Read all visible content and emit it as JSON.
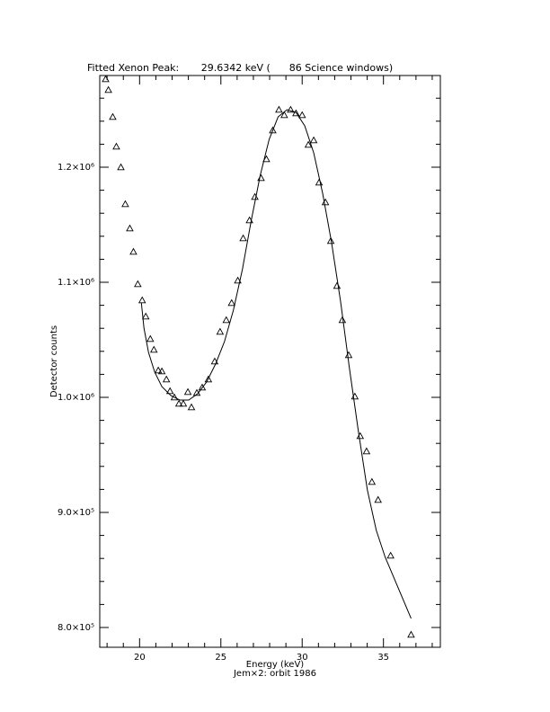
{
  "chart_data": {
    "type": "scatter",
    "title": "Fitted Xenon Peak:       29.6342 keV (      86 Science windows)",
    "xlabel": "Energy (keV)",
    "subtitle": "Jem×2: orbit 1986",
    "ylabel": "Detector counts",
    "xlim": [
      17.55,
      38.5
    ],
    "ylim": [
      782800,
      1279700
    ],
    "xticks": [
      20,
      25,
      30,
      35
    ],
    "yticks": [
      {
        "value": 800000,
        "label": "8.0×10⁵"
      },
      {
        "value": 900000,
        "label": "9.0×10⁵"
      },
      {
        "value": 1000000,
        "label": "1.0×10⁶"
      },
      {
        "value": 1100000,
        "label": "1.1×10⁶"
      },
      {
        "value": 1200000,
        "label": "1.2×10⁶"
      }
    ],
    "xminor_ticks": [
      18,
      19,
      21,
      22,
      23,
      24,
      26,
      27,
      28,
      29,
      31,
      32,
      33,
      34,
      36,
      37,
      38
    ],
    "yminor_ticks": [
      820000,
      840000,
      860000,
      880000,
      920000,
      940000,
      960000,
      980000,
      1020000,
      1040000,
      1060000,
      1080000,
      1120000,
      1140000,
      1160000,
      1180000,
      1220000,
      1240000,
      1260000
    ],
    "series": [
      {
        "mode": "markers",
        "marker": "triangle",
        "color": "#000000",
        "x": [
          17.91,
          18.08,
          18.35,
          18.57,
          18.85,
          19.12,
          19.4,
          19.62,
          19.89,
          20.16,
          20.38,
          20.66,
          20.88,
          21.15,
          21.37,
          21.65,
          21.87,
          22.14,
          22.42,
          22.69,
          22.97,
          23.19,
          23.52,
          23.85,
          24.23,
          24.62,
          24.95,
          25.33,
          25.66,
          26.04,
          26.37,
          26.76,
          27.09,
          27.47,
          27.8,
          28.19,
          28.57,
          28.9,
          29.29,
          29.62,
          30.0,
          30.38,
          30.71,
          31.04,
          31.43,
          31.76,
          32.14,
          32.47,
          32.86,
          33.24,
          33.57,
          33.96,
          34.29,
          34.67,
          35.44,
          36.7
        ],
        "values": [
          1276560,
          1267190,
          1243750,
          1217970,
          1200000,
          1167970,
          1146880,
          1126560,
          1098440,
          1084380,
          1070310,
          1050780,
          1041410,
          1023440,
          1022660,
          1015630,
          1005470,
          1000000,
          994530,
          994530,
          1004690,
          991410,
          1003910,
          1008590,
          1015630,
          1031250,
          1057030,
          1067190,
          1082030,
          1101560,
          1138280,
          1153910,
          1174220,
          1190630,
          1207030,
          1232030,
          1250000,
          1245310,
          1250000,
          1246880,
          1245310,
          1219530,
          1223440,
          1186720,
          1169530,
          1135940,
          1096880,
          1067190,
          1036720,
          1000780,
          966410,
          953130,
          926560,
          910940,
          862500,
          793750
        ]
      },
      {
        "mode": "line",
        "color": "#000000",
        "x": [
          20.11,
          20.27,
          20.55,
          20.93,
          21.37,
          21.92,
          22.47,
          23.02,
          23.57,
          24.12,
          24.67,
          25.22,
          25.77,
          26.32,
          26.87,
          27.42,
          27.97,
          28.52,
          29.07,
          29.62,
          30.16,
          30.71,
          31.26,
          31.81,
          32.36,
          32.91,
          33.46,
          34.01,
          34.56,
          35.11,
          35.44,
          36.7
        ],
        "values": [
          1082030,
          1060160,
          1039060,
          1021880,
          1009380,
          1001560,
          997660,
          997660,
          1003130,
          1013280,
          1028910,
          1048440,
          1075780,
          1110940,
          1153910,
          1192970,
          1224220,
          1243750,
          1250000,
          1247660,
          1235940,
          1212500,
          1177340,
          1134380,
          1083590,
          1025000,
          970310,
          919530,
          884380,
          860940,
          850000,
          807810
        ]
      }
    ]
  }
}
